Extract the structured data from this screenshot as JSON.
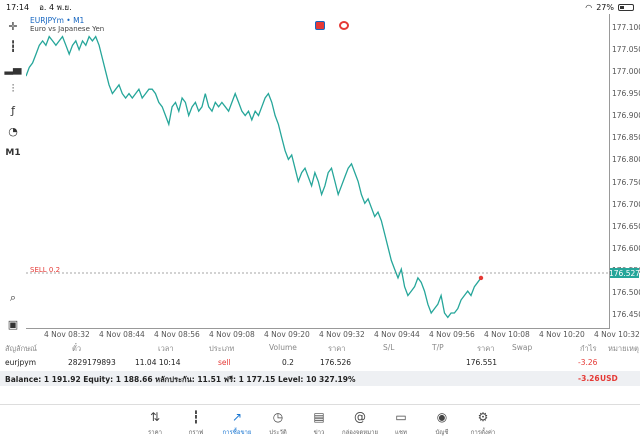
{
  "status": {
    "time": "17:14",
    "date": "อ. 4 พ.ย.",
    "battery": "27%"
  },
  "chart": {
    "symbol": "EURJPYm • M1",
    "description": "Euro vs Japanese Yen",
    "timeframe": "M1",
    "sell_label": "SELL 0.2",
    "current_price": "176.527",
    "line_color": "#26a69a",
    "y_ticks": [
      "177.100",
      "177.050",
      "177.000",
      "176.950",
      "176.900",
      "176.850",
      "176.800",
      "176.750",
      "176.700",
      "176.650",
      "176.600",
      "176.550",
      "176.500",
      "176.450"
    ],
    "x_ticks": [
      "4 Nov 08:32",
      "4 Nov 08:44",
      "4 Nov 08:56",
      "4 Nov 09:08",
      "4 Nov 09:20",
      "4 Nov 09:32",
      "4 Nov 09:44",
      "4 Nov 09:56",
      "4 Nov 10:08",
      "4 Nov 10:20",
      "4 Nov 10:32"
    ]
  },
  "chart_data": {
    "type": "line",
    "ylim": [
      176.425,
      177.12
    ],
    "sell_price": 176.526,
    "y": [
      176.99,
      177.01,
      177.02,
      177.04,
      177.06,
      177.07,
      177.06,
      177.08,
      177.07,
      177.06,
      177.07,
      177.08,
      177.06,
      177.04,
      177.06,
      177.07,
      177.05,
      177.07,
      177.06,
      177.08,
      177.07,
      177.08,
      177.06,
      177.03,
      177.0,
      176.97,
      176.95,
      176.96,
      176.97,
      176.95,
      176.94,
      176.95,
      176.94,
      176.95,
      176.96,
      176.94,
      176.95,
      176.96,
      176.96,
      176.95,
      176.93,
      176.92,
      176.9,
      176.88,
      176.92,
      176.93,
      176.91,
      176.94,
      176.93,
      176.9,
      176.92,
      176.93,
      176.91,
      176.92,
      176.95,
      176.92,
      176.91,
      176.93,
      176.92,
      176.93,
      176.92,
      176.91,
      176.93,
      176.95,
      176.93,
      176.91,
      176.9,
      176.91,
      176.89,
      176.91,
      176.9,
      176.92,
      176.94,
      176.95,
      176.93,
      176.9,
      176.88,
      176.85,
      176.82,
      176.8,
      176.81,
      176.78,
      176.75,
      176.77,
      176.78,
      176.76,
      176.74,
      176.77,
      176.75,
      176.72,
      176.74,
      176.77,
      176.78,
      176.75,
      176.72,
      176.74,
      176.76,
      176.78,
      176.79,
      176.77,
      176.75,
      176.72,
      176.7,
      176.71,
      176.69,
      176.67,
      176.68,
      176.66,
      176.63,
      176.6,
      176.57,
      176.55,
      176.53,
      176.55,
      176.51,
      176.49,
      176.5,
      176.51,
      176.53,
      176.52,
      176.5,
      176.47,
      176.45,
      176.46,
      176.47,
      176.49,
      176.45,
      176.44,
      176.45,
      176.45,
      176.46,
      176.48,
      176.49,
      176.5,
      176.49,
      176.51,
      176.52,
      176.53
    ]
  },
  "trade_table": {
    "headers": [
      "สัญลักษณ์",
      "ตั๋ว",
      "เวลา",
      "ประเภท",
      "Volume",
      "ราคา",
      "S/L",
      "T/P",
      "ราคา",
      "Swap",
      "กำไร",
      "หมายเหตุ"
    ],
    "row": {
      "symbol": "eurjpym",
      "ticket": "2829179893",
      "time": "11.04 10:14",
      "type": "sell",
      "volume": "0.2",
      "open_price": "176.526",
      "sl": "",
      "tp": "",
      "price": "176.551",
      "swap": "",
      "profit": "-3.26",
      "comment": ""
    }
  },
  "balance": {
    "text": "Balance: 1 191.92 Equity: 1 188.66 หลักประกัน: 11.51 ฟรี: 1 177.15 Level: 10 327.19%",
    "profit": "-3.26",
    "currency": "USD"
  },
  "nav": [
    {
      "label": "ราคา",
      "icon": "arrows-icon"
    },
    {
      "label": "กราฟ",
      "icon": "candles-icon"
    },
    {
      "label": "การซื้อขาย",
      "icon": "trade-icon",
      "active": true
    },
    {
      "label": "ประวัติ",
      "icon": "history-icon"
    },
    {
      "label": "ข่าว",
      "icon": "news-icon"
    },
    {
      "label": "กล่องจดหมาย",
      "icon": "mail-icon"
    },
    {
      "label": "แชท",
      "icon": "chat-icon"
    },
    {
      "label": "บัญชี",
      "icon": "account-icon"
    },
    {
      "label": "การตั้งค่า",
      "icon": "settings-icon"
    }
  ]
}
